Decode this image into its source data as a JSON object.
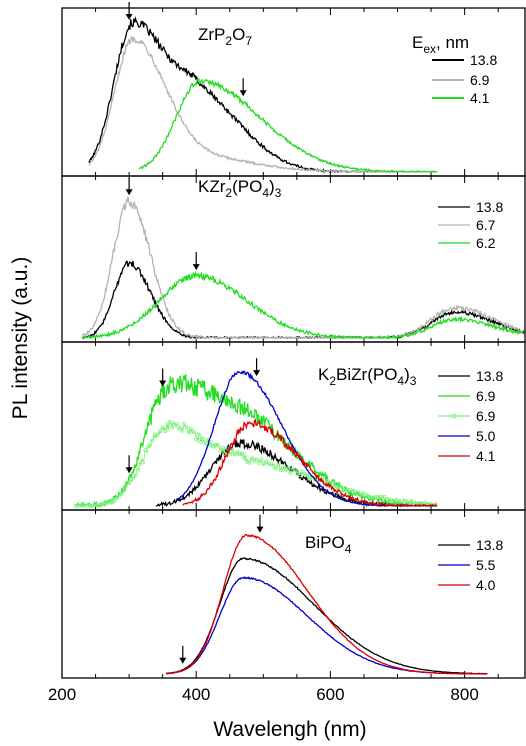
{
  "figure": {
    "ylabel": "PL intensity (a.u.)",
    "xlabel": "Wavelengh (nm)",
    "xticks": [
      "200",
      "400",
      "600",
      "800"
    ]
  },
  "chart_data": [
    {
      "type": "line",
      "title": "ZrP",
      "title_subs": [
        {
          "sub": "2",
          "text": "O"
        },
        {
          "sub": "7",
          "text": ""
        }
      ],
      "legend_header": "E",
      "legend_header_sub": "ex",
      "legend_header_tail": ", nm",
      "xlim": [
        200,
        890
      ],
      "series": [
        {
          "name": "13.8",
          "color": "#000000",
          "peaks": [
            [
              305,
              1.0,
              28,
              48
            ],
            [
              405,
              0.5,
              40,
              65
            ]
          ],
          "start": 240,
          "end": 700,
          "noise": 0.025
        },
        {
          "name": "6.9",
          "color": "#b4b4b4",
          "peaks": [
            [
              305,
              0.89,
              27,
              45
            ],
            [
              380,
              0.12,
              40,
              90
            ]
          ],
          "start": 240,
          "end": 760,
          "noise": 0.02
        },
        {
          "name": "4.1",
          "color": "#22dd22",
          "peaks": [
            [
              405,
              0.62,
              35,
              90
            ]
          ],
          "start": 315,
          "end": 760,
          "noise": 0.02
        }
      ],
      "arrows": [
        300,
        470
      ]
    },
    {
      "type": "line",
      "title": "KZr",
      "title_subs": [
        {
          "sub": "2",
          "text": "(PO"
        },
        {
          "sub": "4",
          "text": ")"
        },
        {
          "sub": "3",
          "text": ""
        }
      ],
      "xlim": [
        200,
        890
      ],
      "series": [
        {
          "name": "13.8",
          "color": "#000000",
          "peaks": [
            [
              300,
              0.52,
              22,
              32
            ],
            [
              785,
              0.18,
              35,
              60
            ]
          ],
          "start": 230,
          "end": 890,
          "noise": 0.03
        },
        {
          "name": "6.7",
          "color": "#b4b4b4",
          "peaks": [
            [
              300,
              0.95,
              24,
              32
            ],
            [
              785,
              0.21,
              35,
              60
            ]
          ],
          "start": 230,
          "end": 890,
          "noise": 0.03
        },
        {
          "name": "6.2",
          "color": "#22dd22",
          "peaks": [
            [
              400,
              0.43,
              55,
              75
            ],
            [
              785,
              0.13,
              35,
              60
            ]
          ],
          "start": 230,
          "end": 890,
          "noise": 0.03
        }
      ],
      "arrows": [
        300,
        400
      ]
    },
    {
      "type": "line",
      "title": "K",
      "title_subs": [
        {
          "sub": "2",
          "text": "BiZr(PO"
        },
        {
          "sub": "4",
          "text": ")"
        },
        {
          "sub": "3",
          "text": ""
        }
      ],
      "xlim": [
        200,
        890
      ],
      "series": [
        {
          "name": "13.8",
          "color": "#000000",
          "peaks": [
            [
              465,
              0.43,
              42,
              75
            ]
          ],
          "start": 340,
          "end": 750,
          "noise": 0.04
        },
        {
          "name": "6.9",
          "color": "#22dd22",
          "peaks": [
            [
              350,
              0.55,
              30,
              40
            ],
            [
              440,
              0.7,
              60,
              95
            ]
          ],
          "start": 220,
          "end": 760,
          "noise": 0.06
        },
        {
          "name": "6.9",
          "color": "#7cf07c",
          "markers": true,
          "peaks": [
            [
              355,
              0.5,
              35,
              50
            ],
            [
              470,
              0.3,
              60,
              110
            ]
          ],
          "start": 220,
          "end": 760,
          "noise": 0.04
        },
        {
          "name": "5.0",
          "color": "#0000cc",
          "peaks": [
            [
              465,
              0.92,
              38,
              62
            ]
          ],
          "start": 370,
          "end": 760,
          "noise": 0.01
        },
        {
          "name": "4.1",
          "color": "#dd0000",
          "peaks": [
            [
              480,
              0.57,
              35,
              70
            ]
          ],
          "start": 380,
          "end": 760,
          "noise": 0.035
        }
      ],
      "arrows": [
        300,
        350,
        490
      ]
    },
    {
      "type": "line",
      "title": "BiPO",
      "title_subs": [
        {
          "sub": "4",
          "text": ""
        }
      ],
      "xlim": [
        200,
        890
      ],
      "series": [
        {
          "name": "13.8",
          "color": "#000000",
          "peaks": [
            [
              470,
              0.79,
              35,
              105
            ]
          ],
          "start": 355,
          "end": 835,
          "noise": 0.005
        },
        {
          "name": "5.5",
          "color": "#0000cc",
          "peaks": [
            [
              470,
              0.66,
              35,
              95
            ]
          ],
          "start": 355,
          "end": 835,
          "noise": 0.005
        },
        {
          "name": "4.0",
          "color": "#dd0000",
          "peaks": [
            [
              475,
              0.95,
              35,
              90
            ]
          ],
          "start": 355,
          "end": 835,
          "noise": 0.005
        }
      ],
      "arrows": [
        380,
        495
      ]
    }
  ]
}
